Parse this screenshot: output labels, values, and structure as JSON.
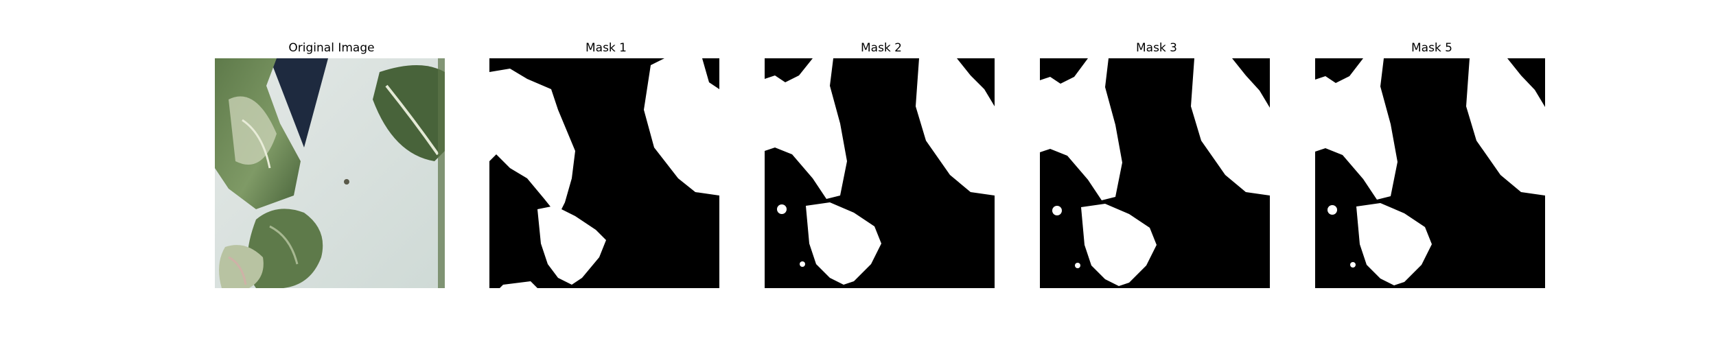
{
  "figure": {
    "panels": [
      {
        "title": "Original Image",
        "kind": "photo"
      },
      {
        "title": "Mask 1",
        "kind": "mask",
        "variant": 1
      },
      {
        "title": "Mask 2",
        "kind": "mask",
        "variant": 2
      },
      {
        "title": "Mask 3",
        "kind": "mask",
        "variant": 3
      },
      {
        "title": "Mask 5",
        "kind": "mask",
        "variant": 5
      }
    ]
  },
  "colors": {
    "background": "#ffffff",
    "mask_background": "#000000",
    "mask_foreground": "#ffffff",
    "leaf_dark": "#4f6b3f",
    "leaf_light": "#c9d2b6",
    "wall": "#d7e0db",
    "shadow_blue": "#1e2a3f"
  }
}
